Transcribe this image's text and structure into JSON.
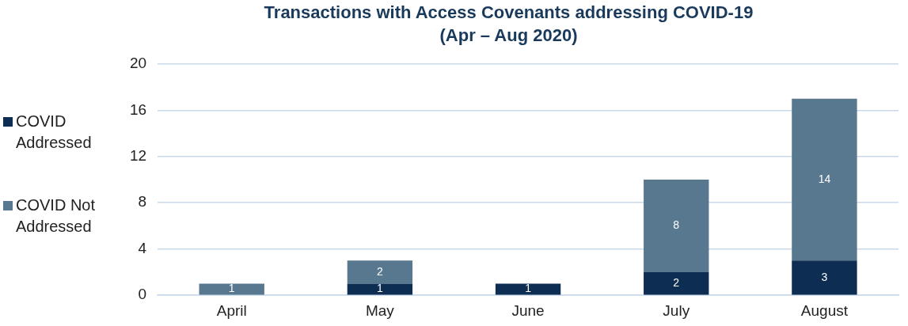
{
  "chart_data": {
    "type": "bar",
    "title": "Transactions with Access Covenants addressing COVID-19",
    "subtitle": "(Apr – Aug 2020)",
    "categories": [
      "April",
      "May",
      "June",
      "July",
      "August"
    ],
    "stacked": true,
    "series": [
      {
        "name": "COVID Addressed",
        "color": "#0e2d52",
        "values": [
          0,
          1,
          1,
          2,
          3
        ],
        "value_labels": [
          null,
          "1",
          "1",
          "2",
          "3"
        ]
      },
      {
        "name": "COVID Not Addressed",
        "color": "#587890",
        "values": [
          1,
          2,
          0,
          8,
          14
        ],
        "value_labels": [
          "1",
          "2",
          null,
          "8",
          "14"
        ]
      }
    ],
    "ylim": [
      0,
      20
    ],
    "yticks": [
      0,
      4,
      8,
      12,
      16,
      20
    ],
    "grid": "y",
    "legend": "left"
  }
}
